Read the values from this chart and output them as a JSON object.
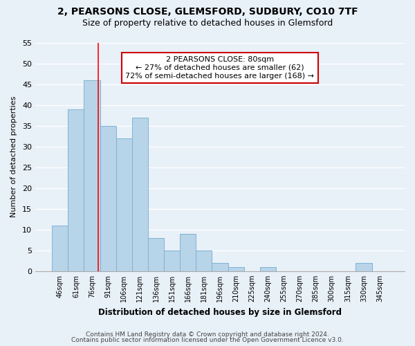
{
  "title": "2, PEARSONS CLOSE, GLEMSFORD, SUDBURY, CO10 7TF",
  "subtitle": "Size of property relative to detached houses in Glemsford",
  "xlabel": "Distribution of detached houses by size in Glemsford",
  "ylabel": "Number of detached properties",
  "bar_color": "#b8d4e8",
  "bar_edge_color": "#7fb3d3",
  "categories": [
    "46sqm",
    "61sqm",
    "76sqm",
    "91sqm",
    "106sqm",
    "121sqm",
    "136sqm",
    "151sqm",
    "166sqm",
    "181sqm",
    "196sqm",
    "210sqm",
    "225sqm",
    "240sqm",
    "255sqm",
    "270sqm",
    "285sqm",
    "300sqm",
    "315sqm",
    "330sqm",
    "345sqm"
  ],
  "values": [
    11,
    39,
    46,
    35,
    32,
    37,
    8,
    5,
    9,
    5,
    2,
    1,
    0,
    1,
    0,
    0,
    0,
    0,
    0,
    2,
    0
  ],
  "ylim": [
    0,
    55
  ],
  "yticks": [
    0,
    5,
    10,
    15,
    20,
    25,
    30,
    35,
    40,
    45,
    50,
    55
  ],
  "red_line_x": 2.4,
  "annotation_title": "2 PEARSONS CLOSE: 80sqm",
  "annotation_line1": "← 27% of detached houses are smaller (62)",
  "annotation_line2": "72% of semi-detached houses are larger (168) →",
  "footer1": "Contains HM Land Registry data © Crown copyright and database right 2024.",
  "footer2": "Contains public sector information licensed under the Open Government Licence v3.0.",
  "background_color": "#e8f0f8",
  "grid_color": "#ffffff",
  "annotation_box_color": "#ffffff",
  "annotation_box_edge": "#cc0000"
}
